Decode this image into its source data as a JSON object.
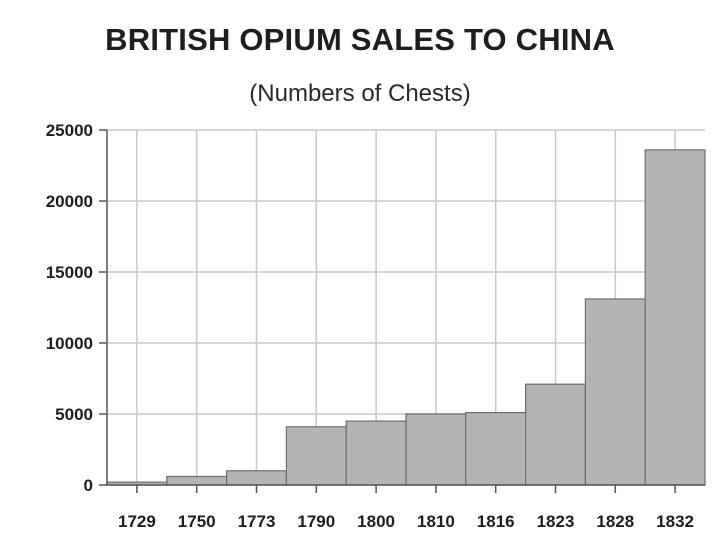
{
  "chart_data": {
    "type": "bar",
    "title": "BRITISH OPIUM SALES TO CHINA",
    "subtitle": "(Numbers of Chests)",
    "xlabel": "",
    "ylabel": "",
    "ylim": [
      0,
      25000
    ],
    "yticks": [
      "0",
      "5000",
      "10000",
      "15000",
      "20000",
      "25000"
    ],
    "yticks_values": [
      0,
      5000,
      10000,
      15000,
      20000,
      25000
    ],
    "grid": true,
    "legend": "none",
    "categories": [
      "",
      "",
      "",
      "",
      "",
      "",
      "",
      "",
      "",
      ""
    ],
    "xticks": [
      "1729",
      "1750",
      "1773",
      "1790",
      "1800",
      "1810",
      "1816",
      "1823",
      "1828",
      "1832"
    ],
    "values": [
      200,
      600,
      1000,
      4100,
      4500,
      5000,
      5100,
      7100,
      13100,
      23600
    ],
    "colors": {
      "bar": "#b4b4b4",
      "bar_stroke": "#6e6e6e",
      "grid": "#c8c8c8",
      "axis": "#555555"
    }
  }
}
